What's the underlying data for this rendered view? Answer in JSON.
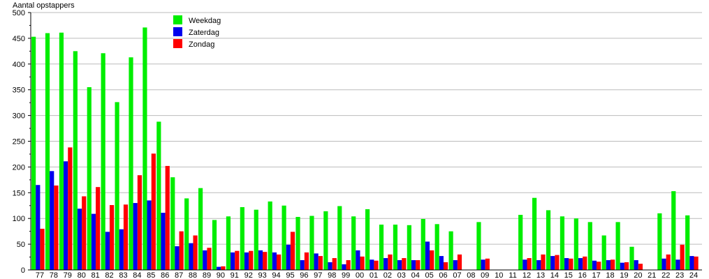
{
  "chart_data": {
    "type": "bar",
    "title": "",
    "ylabel": "Aantal opstappers",
    "xlabel": "",
    "ylim": [
      0,
      500
    ],
    "yticks": [
      0,
      50,
      100,
      150,
      200,
      250,
      300,
      350,
      400,
      450,
      500
    ],
    "grid": true,
    "legend_position": "top-left-center",
    "categories": [
      "77",
      "78",
      "79",
      "80",
      "81",
      "82",
      "83",
      "84",
      "85",
      "86",
      "87",
      "88",
      "89",
      "90",
      "91",
      "92",
      "93",
      "94",
      "95",
      "96",
      "97",
      "98",
      "99",
      "00",
      "01",
      "02",
      "03",
      "04",
      "05",
      "06",
      "07",
      "08",
      "09",
      "10",
      "11",
      "12",
      "13",
      "14",
      "15",
      "16",
      "17",
      "18",
      "19",
      "20",
      "21",
      "22",
      "23",
      "24"
    ],
    "series": [
      {
        "name": "Weekdag",
        "color": "#00ee00",
        "values": [
          453,
          460,
          461,
          425,
          355,
          421,
          326,
          413,
          471,
          288,
          180,
          139,
          159,
          97,
          104,
          122,
          117,
          133,
          125,
          103,
          105,
          114,
          124,
          104,
          118,
          88,
          88,
          87,
          99,
          89,
          75,
          0,
          93,
          0,
          0,
          107,
          140,
          116,
          104,
          100,
          93,
          67,
          93,
          45,
          0,
          110,
          153,
          106
        ]
      },
      {
        "name": "Zaterdag",
        "color": "#0000ee",
        "values": [
          165,
          192,
          211,
          119,
          109,
          74,
          79,
          130,
          135,
          111,
          46,
          52,
          38,
          6,
          34,
          34,
          38,
          34,
          49,
          19,
          32,
          15,
          11,
          38,
          20,
          23,
          19,
          19,
          55,
          27,
          19,
          0,
          20,
          0,
          0,
          20,
          19,
          27,
          23,
          23,
          18,
          19,
          14,
          19,
          0,
          22,
          20,
          27
        ]
      },
      {
        "name": "Zondag",
        "color": "#ff0000",
        "values": [
          80,
          164,
          238,
          143,
          161,
          126,
          127,
          184,
          226,
          202,
          75,
          67,
          43,
          7,
          37,
          37,
          35,
          30,
          74,
          34,
          27,
          23,
          19,
          26,
          18,
          30,
          23,
          19,
          38,
          15,
          30,
          0,
          22,
          0,
          0,
          23,
          30,
          29,
          22,
          26,
          16,
          20,
          15,
          12,
          0,
          30,
          49,
          26
        ]
      }
    ]
  }
}
